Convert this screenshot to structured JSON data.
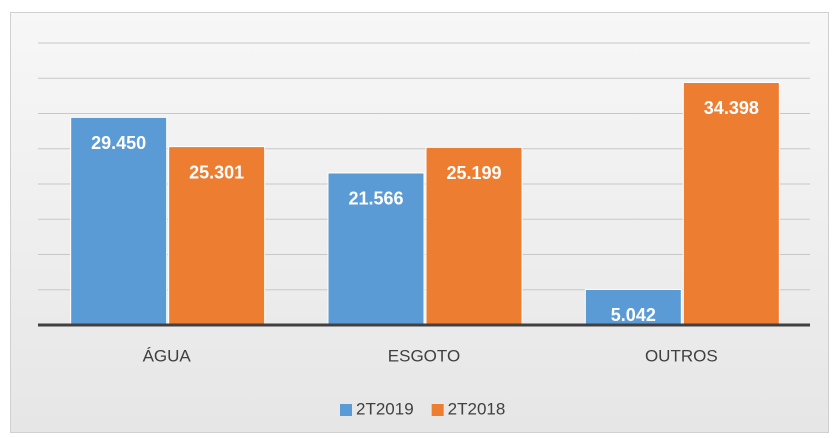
{
  "chart_data": {
    "type": "bar",
    "categories": [
      "ÁGUA",
      "ESGOTO",
      "OUTROS"
    ],
    "series": [
      {
        "name": "2T2019",
        "color": "#5b9bd5",
        "values": [
          29450,
          21566,
          5042
        ],
        "value_labels": [
          "29.450",
          "21.566",
          "5.042"
        ]
      },
      {
        "name": "2T2018",
        "color": "#ed7d31",
        "values": [
          25301,
          25199,
          34398
        ],
        "value_labels": [
          "25.301",
          "25.199",
          "34.398"
        ]
      }
    ],
    "ylim": [
      0,
      40000
    ],
    "yticks": [
      0,
      5000,
      10000,
      15000,
      20000,
      25000,
      30000,
      35000,
      40000
    ],
    "grid": true,
    "legend": "bottom"
  }
}
